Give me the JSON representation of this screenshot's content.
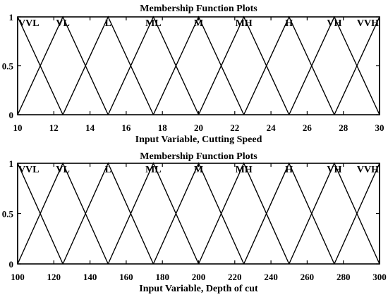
{
  "chart_data": [
    {
      "type": "line",
      "title": "Membership Function Plots",
      "xlabel": "Input Variable, Cutting Speed",
      "ylabel": "",
      "xlim": [
        10,
        30
      ],
      "ylim": [
        0,
        1
      ],
      "x_ticks": [
        10,
        12,
        14,
        16,
        18,
        20,
        22,
        24,
        26,
        28,
        30
      ],
      "y_ticks": [
        0,
        0.5,
        1
      ],
      "grid": false,
      "series": [
        {
          "name": "VVL",
          "x": [
            10,
            10,
            12.5
          ],
          "y": [
            0,
            1,
            0
          ]
        },
        {
          "name": "VL",
          "x": [
            10,
            12.5,
            15
          ],
          "y": [
            0,
            1,
            0
          ]
        },
        {
          "name": "L",
          "x": [
            12.5,
            15,
            17.5
          ],
          "y": [
            0,
            1,
            0
          ]
        },
        {
          "name": "ML",
          "x": [
            15,
            17.5,
            20
          ],
          "y": [
            0,
            1,
            0
          ]
        },
        {
          "name": "M",
          "x": [
            17.5,
            20,
            22.5
          ],
          "y": [
            0,
            1,
            0
          ]
        },
        {
          "name": "MH",
          "x": [
            20,
            22.5,
            25
          ],
          "y": [
            0,
            1,
            0
          ]
        },
        {
          "name": "H",
          "x": [
            22.5,
            25,
            27.5
          ],
          "y": [
            0,
            1,
            0
          ]
        },
        {
          "name": "VH",
          "x": [
            25,
            27.5,
            30
          ],
          "y": [
            0,
            1,
            0
          ]
        },
        {
          "name": "VVH",
          "x": [
            27.5,
            30,
            30
          ],
          "y": [
            0,
            1,
            0
          ]
        }
      ]
    },
    {
      "type": "line",
      "title": "Membership Function Plots",
      "xlabel": "Input Variable, Depth of cut",
      "ylabel": "",
      "xlim": [
        100,
        300
      ],
      "ylim": [
        0,
        1
      ],
      "x_ticks": [
        100,
        120,
        140,
        160,
        180,
        200,
        220,
        240,
        260,
        280,
        300
      ],
      "y_ticks": [
        0,
        0.5,
        1
      ],
      "grid": false,
      "series": [
        {
          "name": "VVL",
          "x": [
            100,
            100,
            125
          ],
          "y": [
            0,
            1,
            0
          ]
        },
        {
          "name": "VL",
          "x": [
            100,
            125,
            150
          ],
          "y": [
            0,
            1,
            0
          ]
        },
        {
          "name": "L",
          "x": [
            125,
            150,
            175
          ],
          "y": [
            0,
            1,
            0
          ]
        },
        {
          "name": "ML",
          "x": [
            150,
            175,
            200
          ],
          "y": [
            0,
            1,
            0
          ]
        },
        {
          "name": "M",
          "x": [
            175,
            200,
            225
          ],
          "y": [
            0,
            1,
            0
          ]
        },
        {
          "name": "MH",
          "x": [
            200,
            225,
            250
          ],
          "y": [
            0,
            1,
            0
          ]
        },
        {
          "name": "H",
          "x": [
            225,
            250,
            275
          ],
          "y": [
            0,
            1,
            0
          ]
        },
        {
          "name": "VH",
          "x": [
            250,
            275,
            300
          ],
          "y": [
            0,
            1,
            0
          ]
        },
        {
          "name": "VVH",
          "x": [
            275,
            300,
            300
          ],
          "y": [
            0,
            1,
            0
          ]
        }
      ]
    }
  ]
}
